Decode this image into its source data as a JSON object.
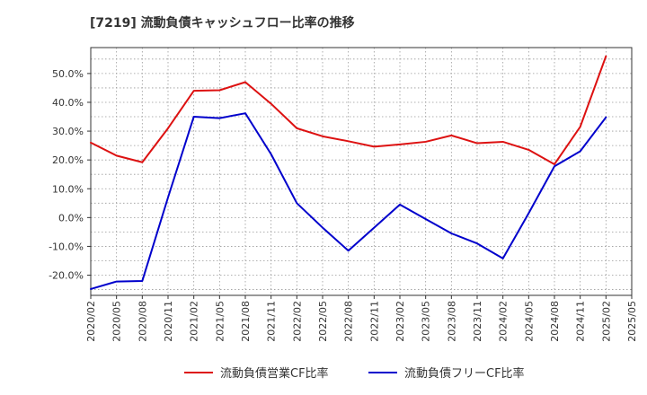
{
  "chart_data": {
    "type": "line",
    "title": "[7219]  流動負債キャッシュフロー比率の推移",
    "xlabel": "",
    "ylabel": "",
    "ylim": [
      -27,
      59
    ],
    "yticks": [
      -20,
      -10,
      0,
      10,
      20,
      30,
      40,
      50
    ],
    "ytick_labels": [
      "-20.0%",
      "-10.0%",
      "0.0%",
      "10.0%",
      "20.0%",
      "30.0%",
      "40.0%",
      "50.0%"
    ],
    "xticks": [
      "2020/02",
      "2020/05",
      "2020/08",
      "2020/11",
      "2021/02",
      "2021/05",
      "2021/08",
      "2021/11",
      "2022/02",
      "2022/05",
      "2022/08",
      "2022/11",
      "2023/02",
      "2023/05",
      "2023/08",
      "2023/11",
      "2024/02",
      "2024/05",
      "2024/08",
      "2024/11",
      "2025/02",
      "2025/05"
    ],
    "grid": true,
    "legend_position": "bottom",
    "series": [
      {
        "name": "流動負債営業CF比率",
        "color": "#dd1111",
        "points": [
          {
            "x": "2020/02",
            "y": 26.0
          },
          {
            "x": "2020/05",
            "y": 21.5
          },
          {
            "x": "2020/08",
            "y": 19.2
          },
          {
            "x": "2020/11",
            "y": 31.0
          },
          {
            "x": "2021/02",
            "y": 44.0
          },
          {
            "x": "2021/05",
            "y": 44.2
          },
          {
            "x": "2021/08",
            "y": 47.0
          },
          {
            "x": "2021/11",
            "y": 39.5
          },
          {
            "x": "2022/02",
            "y": 31.0
          },
          {
            "x": "2022/05",
            "y": 28.2
          },
          {
            "x": "2022/08",
            "y": 26.5
          },
          {
            "x": "2022/11",
            "y": 24.6
          },
          {
            "x": "2023/02",
            "y": 25.4
          },
          {
            "x": "2023/05",
            "y": 26.3
          },
          {
            "x": "2023/08",
            "y": 28.5
          },
          {
            "x": "2023/11",
            "y": 25.8
          },
          {
            "x": "2024/02",
            "y": 26.3
          },
          {
            "x": "2024/05",
            "y": 23.5
          },
          {
            "x": "2024/08",
            "y": 18.5
          },
          {
            "x": "2024/11",
            "y": 31.5
          },
          {
            "x": "2025/02",
            "y": 56.0
          }
        ]
      },
      {
        "name": "流動負債フリーCF比率",
        "color": "#0000cc",
        "points": [
          {
            "x": "2020/02",
            "y": -24.8
          },
          {
            "x": "2020/05",
            "y": -22.2
          },
          {
            "x": "2020/08",
            "y": -22.0
          },
          {
            "x": "2020/11",
            "y": 7.0
          },
          {
            "x": "2021/02",
            "y": 35.0
          },
          {
            "x": "2021/05",
            "y": 34.5
          },
          {
            "x": "2021/08",
            "y": 36.2
          },
          {
            "x": "2021/11",
            "y": 22.0
          },
          {
            "x": "2022/02",
            "y": 5.0
          },
          {
            "x": "2022/05",
            "y": -3.5
          },
          {
            "x": "2022/08",
            "y": -11.5
          },
          {
            "x": "2022/11",
            "y": -3.5
          },
          {
            "x": "2023/02",
            "y": 4.5
          },
          {
            "x": "2023/05",
            "y": -0.5
          },
          {
            "x": "2023/08",
            "y": -5.5
          },
          {
            "x": "2023/11",
            "y": -9.0
          },
          {
            "x": "2024/02",
            "y": -14.2
          },
          {
            "x": "2024/05",
            "y": 1.5
          },
          {
            "x": "2024/08",
            "y": 17.8
          },
          {
            "x": "2024/11",
            "y": 23.0
          },
          {
            "x": "2025/02",
            "y": 34.8
          }
        ]
      }
    ]
  }
}
